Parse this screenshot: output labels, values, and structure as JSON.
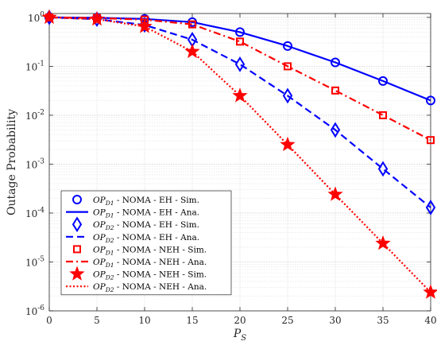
{
  "chart_data": {
    "type": "line",
    "title": "",
    "xlabel": "P_S",
    "ylabel": "Outage Probability",
    "xlim": [
      0,
      40
    ],
    "ylim": [
      1e-06,
      1.2
    ],
    "yscale": "log",
    "grid": true,
    "legend_position": "bottom-left",
    "x_ticks": [
      0,
      5,
      10,
      15,
      20,
      25,
      30,
      35,
      40
    ],
    "y_tick_labels": [
      {
        "base": "10",
        "exp": "0",
        "value": 1
      },
      {
        "base": "10",
        "exp": "-1",
        "value": 0.1
      },
      {
        "base": "10",
        "exp": "-2",
        "value": 0.01
      },
      {
        "base": "10",
        "exp": "-3",
        "value": 0.001
      },
      {
        "base": "10",
        "exp": "-4",
        "value": 0.0001
      },
      {
        "base": "10",
        "exp": "-5",
        "value": 1e-05
      },
      {
        "base": "10",
        "exp": "-6",
        "value": 1e-06
      }
    ],
    "x": [
      0,
      5,
      10,
      15,
      20,
      25,
      30,
      35,
      40
    ],
    "series": [
      {
        "name": "OP_D1 - NOMA - EH - Sim.",
        "color": "#0000ff",
        "marker": "circle",
        "line": "none",
        "values": [
          1.0,
          0.98,
          0.93,
          0.8,
          0.5,
          0.26,
          0.12,
          0.05,
          0.02
        ]
      },
      {
        "name": "OP_D1 - NOMA - EH - Ana.",
        "color": "#0000ff",
        "marker": "none",
        "line": "solid",
        "values": [
          1.0,
          0.98,
          0.93,
          0.8,
          0.5,
          0.26,
          0.12,
          0.05,
          0.02
        ]
      },
      {
        "name": "OP_D2 - NOMA - EH - Sim.",
        "color": "#0000ff",
        "marker": "diamond",
        "line": "none",
        "values": [
          1.0,
          0.92,
          0.7,
          0.35,
          0.11,
          0.025,
          0.005,
          0.0008,
          0.00013
        ]
      },
      {
        "name": "OP_D2 - NOMA - EH - Ana.",
        "color": "#0000ff",
        "marker": "none",
        "line": "dashed",
        "values": [
          1.0,
          0.92,
          0.7,
          0.35,
          0.11,
          0.025,
          0.005,
          0.0008,
          0.00013
        ]
      },
      {
        "name": "OP_D1 - NOMA - NEH - Sim.",
        "color": "#ff0000",
        "marker": "square",
        "line": "none",
        "values": [
          1.0,
          0.97,
          0.9,
          0.72,
          0.32,
          0.1,
          0.032,
          0.01,
          0.0031
        ]
      },
      {
        "name": "OP_D1 - NOMA - NEH - Ana.",
        "color": "#ff0000",
        "marker": "none",
        "line": "dashdot",
        "values": [
          1.0,
          0.97,
          0.9,
          0.72,
          0.32,
          0.1,
          0.032,
          0.01,
          0.0031
        ]
      },
      {
        "name": "OP_D2 - NOMA - NEH - Sim.",
        "color": "#ff0000",
        "marker": "star",
        "line": "none",
        "values": [
          1.0,
          0.92,
          0.65,
          0.2,
          0.025,
          0.0025,
          0.00024,
          2.4e-05,
          2.4e-06
        ]
      },
      {
        "name": "OP_D2 - NOMA - NEH - Ana.",
        "color": "#ff0000",
        "marker": "none",
        "line": "dotted",
        "values": [
          1.0,
          0.92,
          0.65,
          0.2,
          0.025,
          0.0025,
          0.00024,
          2.4e-05,
          2.4e-06
        ]
      }
    ],
    "legend": [
      {
        "op": "OP",
        "sub": "D1",
        "rest": " - NOMA - EH - Sim."
      },
      {
        "op": "OP",
        "sub": "D1",
        "rest": " - NOMA - EH - Ana."
      },
      {
        "op": "OP",
        "sub": "D2",
        "rest": " - NOMA - EH - Sim."
      },
      {
        "op": "OP",
        "sub": "D2",
        "rest": " - NOMA - EH - Ana."
      },
      {
        "op": "OP",
        "sub": "D1",
        "rest": " - NOMA - NEH - Sim."
      },
      {
        "op": "OP",
        "sub": "D1",
        "rest": " - NOMA - NEH - Ana."
      },
      {
        "op": "OP",
        "sub": "D2",
        "rest": " - NOMA - NEH - Sim."
      },
      {
        "op": "OP",
        "sub": "D2",
        "rest": " - NOMA - NEH - Ana."
      }
    ],
    "xlabel_parts": {
      "main": "P",
      "sub": "S"
    }
  }
}
